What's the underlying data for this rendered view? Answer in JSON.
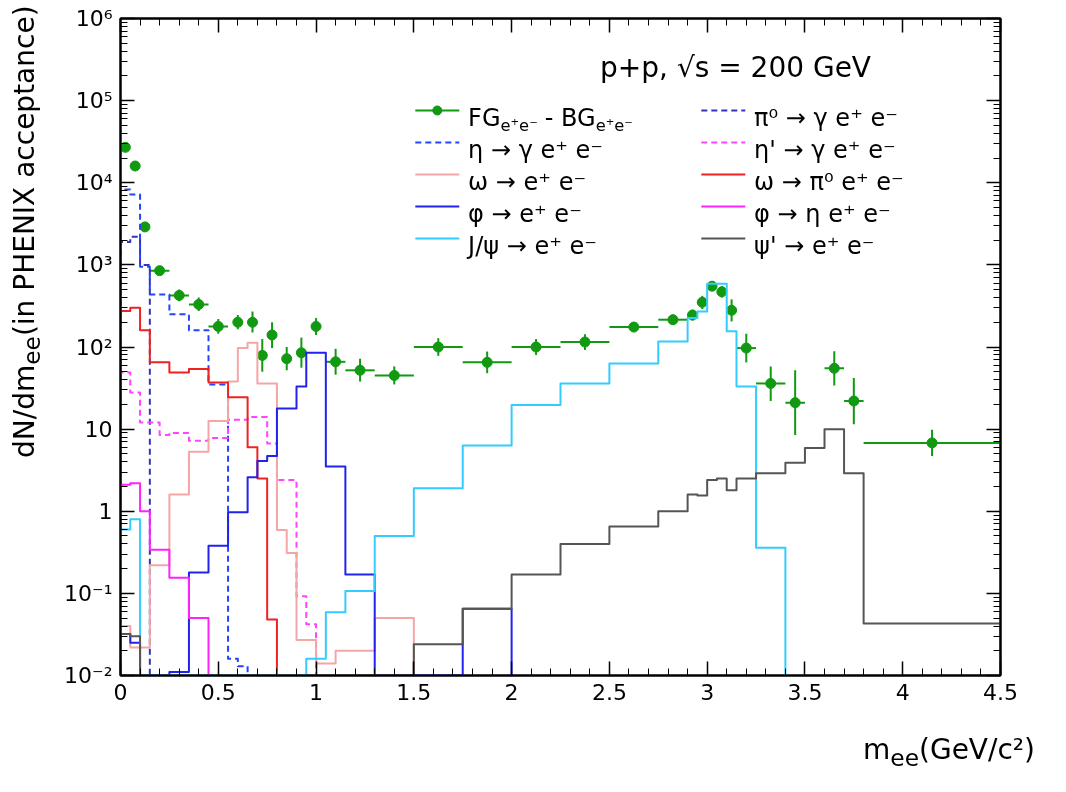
{
  "chart_data": {
    "type": "histogram",
    "title": "p+p, √s = 200 GeV",
    "xlabel": "m$_{ee}$(GeV/c²)",
    "ylabel": "dN/dm$_{ee}$(in PHENIX acceptance)",
    "xlim": [
      0,
      4.5
    ],
    "ylim": [
      0.01,
      1000000
    ],
    "log": "y",
    "legend": "top right",
    "xticks": [
      0,
      0.5,
      1,
      1.5,
      2,
      2.5,
      3,
      3.5,
      4,
      4.5
    ],
    "yticks": [
      {
        "value": 0.01,
        "label": "10⁻²"
      },
      {
        "value": 0.1,
        "label": "10⁻¹"
      },
      1,
      10,
      {
        "value": 100,
        "label": "10²"
      },
      {
        "value": 1000,
        "label": "10³"
      },
      {
        "value": 10000,
        "label": "10⁴"
      },
      {
        "value": 100000,
        "label": "10⁵"
      },
      {
        "value": 1000000,
        "label": "10⁶"
      }
    ],
    "series": [
      {
        "name": "FG$_{e⁺e⁻}$ - BG$_{e⁺e⁻}$",
        "type": "scatter",
        "marker": "circle",
        "color": "#119911",
        "x": [
          0.025,
          0.075,
          0.125,
          0.2,
          0.3,
          0.4,
          0.5,
          0.6,
          0.675,
          0.725,
          0.775,
          0.85,
          0.925,
          1.0,
          1.1,
          1.225,
          1.4,
          1.625,
          1.875,
          2.125,
          2.375,
          2.625,
          2.825,
          2.925,
          2.975,
          3.025,
          3.075,
          3.125,
          3.2,
          3.325,
          3.45,
          3.65,
          3.75,
          4.15
        ],
        "values": [
          27000,
          16000,
          2900,
          850,
          425,
          330,
          178,
          200,
          200,
          79,
          140,
          72,
          85,
          178,
          66,
          52,
          45,
          100,
          65,
          100,
          115,
          175,
          215,
          245,
          350,
          550,
          470,
          280,
          97,
          36,
          21,
          55,
          22,
          6.8
        ],
        "errors": [
          null,
          null,
          null,
          null,
          [
            360,
            500
          ],
          [
            275,
            400
          ],
          [
            145,
            220
          ],
          [
            165,
            245
          ],
          [
            150,
            270
          ],
          [
            50,
            125
          ],
          [
            97,
            200
          ],
          [
            52,
            100
          ],
          [
            56,
            130
          ],
          [
            140,
            225
          ],
          [
            46,
            95
          ],
          [
            38,
            72
          ],
          [
            35,
            58
          ],
          [
            78,
            128
          ],
          [
            48,
            88
          ],
          [
            80,
            125
          ],
          [
            92,
            143
          ],
          [
            152,
            200
          ],
          [
            187,
            247
          ],
          [
            210,
            285
          ],
          [
            290,
            420
          ],
          [
            480,
            630
          ],
          [
            400,
            550
          ],
          [
            205,
            380
          ],
          [
            65,
            145
          ],
          [
            22,
            58
          ],
          [
            8.5,
            52
          ],
          [
            34,
            89
          ],
          [
            11.5,
            42
          ],
          [
            4.7,
            9.8
          ]
        ],
        "xerrors": [
          null,
          null,
          null,
          0.05,
          0.05,
          0.05,
          0.05,
          0.025,
          0.025,
          0.025,
          0.025,
          0.025,
          0.025,
          0.025,
          0.05,
          0.075,
          0.1,
          0.125,
          0.125,
          0.125,
          0.125,
          0.125,
          0.075,
          0.025,
          0.025,
          0.025,
          0.025,
          0.025,
          0.05,
          0.075,
          0.05,
          0.05,
          0.05,
          0.35
        ]
      },
      {
        "name": "π⁰ → γ e⁺ e⁻",
        "color": "#3333bb",
        "line_style": "dashed",
        "bins": [
          0,
          0.05,
          0.1,
          0.15
        ],
        "values": [
          1900,
          2200,
          1000
        ]
      },
      {
        "name": "η → γ e⁺ e⁻",
        "color": "#2244ff",
        "line_style": "dashed",
        "bins": [
          0,
          0.05,
          0.1,
          0.15,
          0.25,
          0.35,
          0.45,
          0.55,
          0.6,
          0.65
        ],
        "values": [
          8300,
          7200,
          950,
          435,
          250,
          160,
          35,
          0.016,
          0.013
        ]
      },
      {
        "name": "η' → γ e⁺ e⁻",
        "color": "#ff44ff",
        "line_style": "dashed",
        "bins": [
          0,
          0.05,
          0.1,
          0.2,
          0.25,
          0.35,
          0.45,
          0.55,
          0.65,
          0.75,
          0.8,
          0.9,
          0.95,
          1.0
        ],
        "values": [
          49,
          28,
          12,
          8.5,
          9,
          7.2,
          7.8,
          13,
          14,
          6.7,
          2.4,
          0.092,
          0.042
        ]
      },
      {
        "name": "ω → e⁺ e⁻",
        "color": "#f4a6a6",
        "line_style": "solid",
        "bins": [
          0,
          0.05,
          0.15,
          0.25,
          0.35,
          0.45,
          0.55,
          0.6,
          0.65,
          0.7,
          0.8,
          0.85,
          0.9,
          1.0,
          1.1,
          1.3,
          1.5
        ],
        "values": [
          0.04,
          0.022,
          0.22,
          1.6,
          5.3,
          12.6,
          38,
          97,
          113,
          36,
          0.59,
          0.31,
          0.027,
          0.014,
          0.02,
          0.05
        ]
      },
      {
        "name": "ω → π⁰ e⁺ e⁻",
        "color": "#ee2222",
        "line_style": "solid",
        "bins": [
          0,
          0.05,
          0.1,
          0.15,
          0.25,
          0.35,
          0.45,
          0.55,
          0.65,
          0.7,
          0.75,
          0.8
        ],
        "values": [
          275,
          300,
          160,
          65,
          49,
          54,
          37,
          24.5,
          6.0,
          2.5,
          0.048
        ]
      },
      {
        "name": "φ → e⁺ e⁻",
        "color": "#2222ee",
        "line_style": "solid",
        "bins": [
          0,
          0.05,
          0.1,
          0.25,
          0.35,
          0.45,
          0.55,
          0.65,
          0.7,
          0.75,
          0.8,
          0.9,
          0.95,
          1.05,
          1.15,
          1.3,
          1.75,
          2.0
        ],
        "values": [
          0.032,
          0.025,
          0.01,
          0.011,
          0.18,
          0.38,
          0.97,
          2.6,
          4.1,
          4.7,
          17.8,
          33,
          85,
          3.5,
          0.17,
          0.01,
          0.065
        ]
      },
      {
        "name": "φ → η e⁺ e⁻",
        "color": "#ff22ff",
        "line_style": "solid",
        "bins": [
          0,
          0.05,
          0.1,
          0.15,
          0.25,
          0.35,
          0.45
        ],
        "values": [
          2.1,
          2.2,
          1.0,
          0.34,
          0.155,
          0.05
        ]
      },
      {
        "name": "J/ψ → e⁺ e⁻",
        "color": "#33ccff",
        "line_style": "solid",
        "bins": [
          0,
          0.05,
          0.1,
          0.95,
          1.05,
          1.15,
          1.3,
          1.5,
          1.75,
          2.0,
          2.25,
          2.5,
          2.75,
          2.9,
          2.95,
          3.0,
          3.1,
          3.15,
          3.25,
          3.4
        ],
        "values": [
          0.6,
          0.8,
          0.01,
          0.016,
          0.059,
          0.107,
          0.5,
          1.9,
          6.3,
          19.6,
          36,
          63,
          117,
          225,
          270,
          590,
          155,
          33,
          0.36
        ]
      },
      {
        "name": "ψ' → e⁺ e⁻",
        "color": "#555555",
        "line_style": "solid",
        "bins": [
          0,
          0.05,
          0.1,
          1.5,
          1.75,
          2.0,
          2.25,
          2.5,
          2.75,
          2.9,
          2.95,
          3.0,
          3.05,
          3.1,
          3.15,
          3.25,
          3.4,
          3.5,
          3.6,
          3.7,
          3.8,
          4.5
        ],
        "values": [
          0.032,
          0.03,
          0.01,
          0.024,
          0.065,
          0.17,
          0.4,
          0.65,
          1.0,
          1.6,
          1.55,
          2.4,
          2.5,
          1.8,
          2.5,
          2.9,
          3.9,
          5.9,
          10,
          2.9,
          0.043
        ]
      }
    ]
  }
}
